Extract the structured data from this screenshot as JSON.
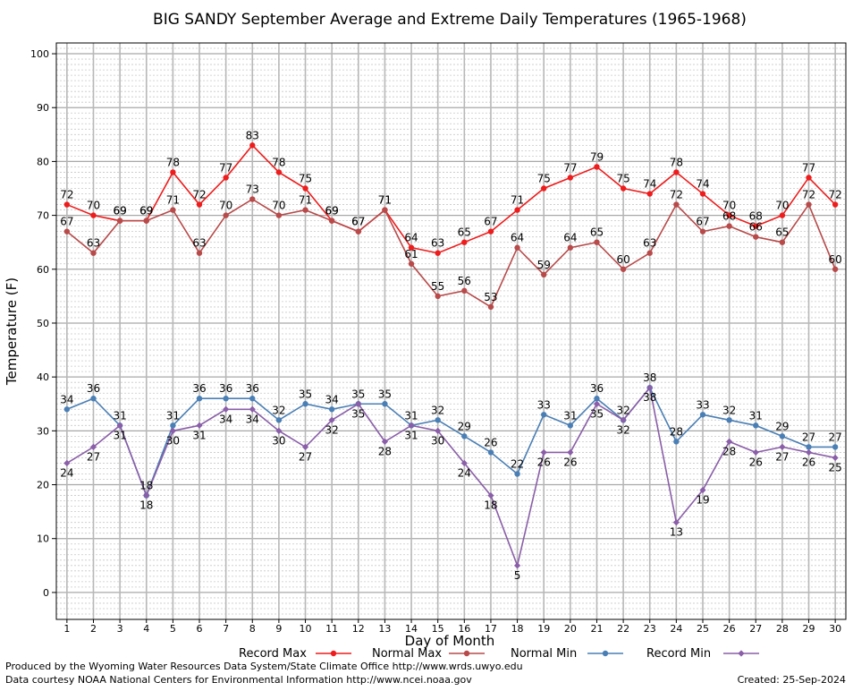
{
  "chart_data": {
    "type": "line",
    "title": "BIG SANDY September Average and Extreme Daily Temperatures (1965-1968)",
    "xlabel": "Day of Month",
    "ylabel": "Temperature (F)",
    "ylim": [
      -5,
      102
    ],
    "xlim": [
      0.6,
      30.4
    ],
    "yticks": [
      0,
      10,
      20,
      30,
      40,
      50,
      60,
      70,
      80,
      90,
      100
    ],
    "x": [
      1,
      2,
      3,
      4,
      5,
      6,
      7,
      8,
      9,
      10,
      11,
      12,
      13,
      14,
      15,
      16,
      17,
      18,
      19,
      20,
      21,
      22,
      23,
      24,
      25,
      26,
      27,
      28,
      29,
      30
    ],
    "grid": true,
    "legend_position": "bottom",
    "series": [
      {
        "name": "Record Max",
        "color": "#ee1c1c",
        "marker": "star",
        "values": [
          72,
          70,
          69,
          69,
          78,
          72,
          77,
          83,
          78,
          75,
          69,
          67,
          71,
          64,
          63,
          65,
          67,
          71,
          75,
          77,
          79,
          75,
          74,
          78,
          74,
          70,
          68,
          70,
          77,
          72
        ]
      },
      {
        "name": "Normal Max",
        "color": "#b84a4a",
        "marker": "circle",
        "values": [
          67,
          63,
          69,
          69,
          71,
          63,
          70,
          73,
          70,
          71,
          69,
          67,
          71,
          61,
          55,
          56,
          53,
          64,
          59,
          64,
          65,
          60,
          63,
          72,
          67,
          68,
          66,
          65,
          72,
          60
        ]
      },
      {
        "name": "Normal Min",
        "color": "#4a7fb5",
        "marker": "circle",
        "values": [
          34,
          36,
          31,
          18,
          31,
          36,
          36,
          36,
          32,
          35,
          34,
          35,
          35,
          31,
          32,
          29,
          26,
          22,
          33,
          31,
          36,
          32,
          38,
          28,
          33,
          32,
          31,
          29,
          27,
          27
        ]
      },
      {
        "name": "Record Min",
        "color": "#8a5ea8",
        "marker": "diamond",
        "values": [
          24,
          27,
          31,
          18,
          30,
          31,
          34,
          34,
          30,
          27,
          32,
          35,
          28,
          31,
          30,
          24,
          18,
          5,
          26,
          26,
          35,
          32,
          38,
          13,
          19,
          28,
          26,
          27,
          26,
          25
        ]
      }
    ]
  },
  "footer": {
    "produced_by": "Produced by the Wyoming Water Resources Data System/State Climate Office http://www.wrds.uwyo.edu",
    "courtesy": "Data courtesy NOAA National Centers for Environmental Information http://www.ncei.noaa.gov",
    "created": "Created:  25-Sep-2024"
  }
}
